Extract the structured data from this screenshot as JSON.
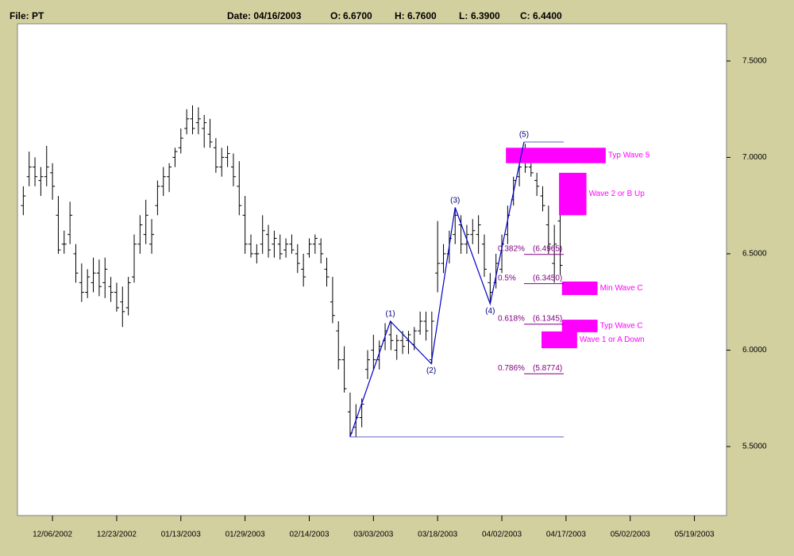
{
  "header": {
    "file": "File: PT",
    "date": "Date: 04/16/2003",
    "fields": [
      {
        "label": "O:",
        "value": "6.6700"
      },
      {
        "label": "H:",
        "value": "6.7600"
      },
      {
        "label": "L:",
        "value": "6.3900"
      },
      {
        "label": "C:",
        "value": "6.4400"
      }
    ]
  },
  "chart_data": {
    "type": "ohlc",
    "color": "#000000",
    "x": [
      0,
      1,
      2,
      3,
      4,
      5,
      6,
      7,
      8,
      9,
      10,
      11,
      12,
      13,
      14,
      15,
      16,
      17,
      18,
      19,
      20,
      21,
      22,
      23,
      24,
      25,
      26,
      27,
      28,
      29,
      30,
      31,
      32,
      33,
      34,
      35,
      36,
      37,
      38,
      39,
      40,
      41,
      42,
      43,
      44,
      45,
      46,
      47,
      48,
      49,
      50,
      51,
      52,
      53,
      54,
      55,
      56,
      57,
      58,
      59,
      60,
      61,
      62,
      63,
      64,
      65,
      66,
      67,
      68,
      69,
      70,
      71,
      72,
      73,
      74,
      75,
      76,
      77,
      78,
      79,
      80,
      81,
      82,
      83,
      84,
      85,
      86,
      87,
      88,
      89,
      90,
      91,
      92
    ],
    "open": [
      6.75,
      6.9,
      6.95,
      6.88,
      6.9,
      6.92,
      6.7,
      6.55,
      6.6,
      6.5,
      6.35,
      6.3,
      6.35,
      6.4,
      6.35,
      6.33,
      6.3,
      6.25,
      6.22,
      6.38,
      6.55,
      6.6,
      6.55,
      6.75,
      6.85,
      6.9,
      7.0,
      7.05,
      7.15,
      7.2,
      7.18,
      7.15,
      7.12,
      7.05,
      6.95,
      7.0,
      6.95,
      6.85,
      6.7,
      6.55,
      6.5,
      6.55,
      6.6,
      6.55,
      6.55,
      6.52,
      6.55,
      6.5,
      6.42,
      6.5,
      6.55,
      6.55,
      6.42,
      6.25,
      6.1,
      5.95,
      5.68,
      5.6,
      5.65,
      5.9,
      6.0,
      5.95,
      6.05,
      6.08,
      6.0,
      6.05,
      6.05,
      6.03,
      6.1,
      6.15,
      5.95,
      6.4,
      6.45,
      6.5,
      6.6,
      6.65,
      6.55,
      6.6,
      6.6,
      6.55,
      6.35,
      6.35,
      6.42,
      6.6,
      6.78,
      6.9,
      6.98,
      6.95,
      6.88,
      6.8,
      6.65,
      6.45,
      6.67
    ],
    "high": [
      6.85,
      7.03,
      7.0,
      6.95,
      7.06,
      6.97,
      6.8,
      6.62,
      6.77,
      6.55,
      6.45,
      6.42,
      6.48,
      6.47,
      6.48,
      6.38,
      6.35,
      6.33,
      6.38,
      6.6,
      6.7,
      6.78,
      6.68,
      6.88,
      6.95,
      6.97,
      7.05,
      7.15,
      7.25,
      7.27,
      7.26,
      7.22,
      7.2,
      7.1,
      7.05,
      7.06,
      7.02,
      6.98,
      6.8,
      6.6,
      6.55,
      6.7,
      6.65,
      6.62,
      6.6,
      6.58,
      6.6,
      6.55,
      6.5,
      6.58,
      6.6,
      6.58,
      6.48,
      6.38,
      6.15,
      6.02,
      5.78,
      5.72,
      5.75,
      6.0,
      6.08,
      6.05,
      6.14,
      6.15,
      6.08,
      6.1,
      6.1,
      6.12,
      6.2,
      6.2,
      6.2,
      6.67,
      6.55,
      6.62,
      6.74,
      6.7,
      6.65,
      6.68,
      6.7,
      6.6,
      6.4,
      6.5,
      6.6,
      6.75,
      6.9,
      7.0,
      7.07,
      7.0,
      6.92,
      6.85,
      6.75,
      6.65,
      6.76
    ],
    "low": [
      6.7,
      6.85,
      6.85,
      6.8,
      6.85,
      6.78,
      6.5,
      6.5,
      6.55,
      6.35,
      6.25,
      6.27,
      6.3,
      6.28,
      6.27,
      6.25,
      6.2,
      6.12,
      6.18,
      6.35,
      6.5,
      6.55,
      6.5,
      6.7,
      6.8,
      6.82,
      6.95,
      7.02,
      7.12,
      7.12,
      7.12,
      7.05,
      7.05,
      6.92,
      6.9,
      6.95,
      6.85,
      6.7,
      6.5,
      6.48,
      6.45,
      6.5,
      6.48,
      6.48,
      6.47,
      6.48,
      6.5,
      6.4,
      6.33,
      6.48,
      6.5,
      6.45,
      6.33,
      6.14,
      5.9,
      5.78,
      5.55,
      5.55,
      5.6,
      5.85,
      5.9,
      5.9,
      6.0,
      6.0,
      5.95,
      5.98,
      5.98,
      6.0,
      6.08,
      6.05,
      5.93,
      6.3,
      6.4,
      6.45,
      6.55,
      6.5,
      6.5,
      6.55,
      6.5,
      6.38,
      6.24,
      6.32,
      6.4,
      6.55,
      6.75,
      6.85,
      6.92,
      6.9,
      6.8,
      6.72,
      6.5,
      6.35,
      6.39
    ],
    "close": [
      6.8,
      6.95,
      6.9,
      6.9,
      6.95,
      6.85,
      6.52,
      6.55,
      6.7,
      6.4,
      6.3,
      6.38,
      6.4,
      6.33,
      6.42,
      6.3,
      6.22,
      6.2,
      6.35,
      6.55,
      6.65,
      6.7,
      6.6,
      6.85,
      6.9,
      6.95,
      7.03,
      7.1,
      7.2,
      7.15,
      7.2,
      7.18,
      7.08,
      6.95,
      7.0,
      7.02,
      6.9,
      6.75,
      6.55,
      6.5,
      6.5,
      6.62,
      6.52,
      6.58,
      6.5,
      6.55,
      6.52,
      6.45,
      6.38,
      6.55,
      6.58,
      6.5,
      6.38,
      6.18,
      5.95,
      5.8,
      5.57,
      5.65,
      5.72,
      5.95,
      5.95,
      6.02,
      6.1,
      6.05,
      6.05,
      6.02,
      6.08,
      6.1,
      6.15,
      6.1,
      6.15,
      6.45,
      6.5,
      6.58,
      6.7,
      6.55,
      6.6,
      6.62,
      6.65,
      6.42,
      6.3,
      6.45,
      6.55,
      6.7,
      6.88,
      6.95,
      6.95,
      6.92,
      6.85,
      6.75,
      6.55,
      6.55,
      6.44
    ],
    "xlim": [
      -1,
      120.5
    ],
    "xticks": [
      {
        "value": 5,
        "label": "12/06/2002"
      },
      {
        "value": 16,
        "label": "12/23/2002"
      },
      {
        "value": 27,
        "label": "01/13/2003"
      },
      {
        "value": 38,
        "label": "01/29/2003"
      },
      {
        "value": 49,
        "label": "02/14/2003"
      },
      {
        "value": 60,
        "label": "03/03/2003"
      },
      {
        "value": 71,
        "label": "03/18/2003"
      },
      {
        "value": 82,
        "label": "04/02/2003"
      },
      {
        "value": 93,
        "label": "04/17/2003"
      },
      {
        "value": 104,
        "label": "05/02/2003"
      },
      {
        "value": 115,
        "label": "05/19/2003"
      }
    ],
    "ylim": [
      5.142,
      7.693
    ],
    "yticks": [
      {
        "value": 5.5,
        "label": "5.5000"
      },
      {
        "value": 6,
        "label": "6.0000"
      },
      {
        "value": 6.5,
        "label": "6.5000"
      },
      {
        "value": 7,
        "label": "7.0000"
      },
      {
        "value": 7.5,
        "label": "7.5000"
      }
    ],
    "waves": {
      "color": "#0000cc",
      "labels": [
        "(1)",
        "(2)",
        "(3)",
        "(4)",
        "(5)"
      ],
      "x": [
        56,
        62.9,
        69.9,
        74,
        80,
        85.8
      ],
      "y": [
        5.55,
        6.15,
        5.93,
        6.74,
        6.24,
        7.08
      ]
    },
    "retracements": {
      "color": "#800080",
      "levels": [
        {
          "ratio": "0.382%",
          "value": 6.4965,
          "label": "(6.4965)"
        },
        {
          "ratio": "0.5%",
          "value": 6.345,
          "label": "(6.3450)"
        },
        {
          "ratio": "0.618%",
          "value": 6.1345,
          "label": "(6.1345)"
        },
        {
          "ratio": "0.786%",
          "value": 5.8774,
          "label": "(5.8774)"
        }
      ]
    },
    "zones": {
      "color": "#ff00ff",
      "items": [
        {
          "label": "Typ Wave 5",
          "x": [
            82.7,
            99.8
          ],
          "y": [
            6.97,
            7.05
          ]
        },
        {
          "label": "Wave 2 or B Up",
          "x": [
            91.8,
            96.5
          ],
          "y": [
            6.7,
            6.92
          ]
        },
        {
          "label": "Min Wave C",
          "x": [
            92.3,
            98.4
          ],
          "y": [
            6.286,
            6.356
          ]
        },
        {
          "label": "Typ Wave C",
          "x": [
            92.3,
            98.4
          ],
          "y": [
            6.093,
            6.158
          ]
        },
        {
          "label": "Wave 1 or A Down",
          "x": [
            88.8,
            94.9
          ],
          "y": [
            6.01,
            6.097
          ]
        }
      ]
    }
  }
}
